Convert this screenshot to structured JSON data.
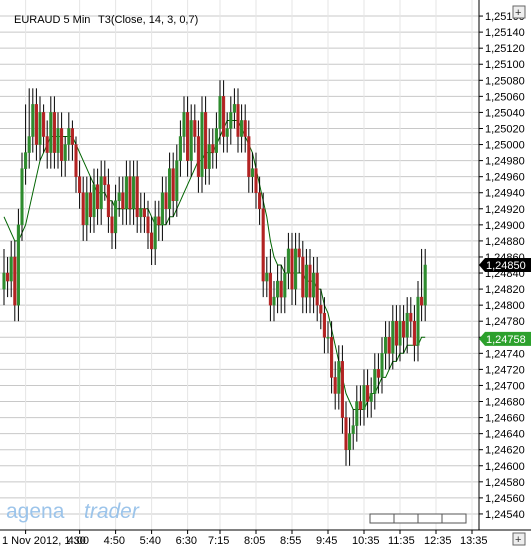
{
  "chart_data": {
    "type": "candlestick",
    "title": "EURAUD 5 Min",
    "indicator_label": "T3(Close, 14, 3, 0,7)",
    "ylim": [
      1.2452,
      1.2518
    ],
    "y_ticks": [
      1.2454,
      1.2456,
      1.2458,
      1.246,
      1.2462,
      1.2464,
      1.2466,
      1.2468,
      1.247,
      1.2472,
      1.2474,
      1.2476,
      1.2478,
      1.248,
      1.2482,
      1.2484,
      1.2486,
      1.2488,
      1.249,
      1.2492,
      1.2494,
      1.2496,
      1.2498,
      1.25,
      1.2502,
      1.2504,
      1.2506,
      1.2508,
      1.251,
      1.2512,
      1.2514,
      1.2516
    ],
    "y_tick_labels": [
      "1,24540",
      "1,24560",
      "1,24580",
      "1,24600",
      "1,24620",
      "1,24640",
      "1,24660",
      "1,24680",
      "1,24700",
      "1,24720",
      "1,24740",
      "1,24760",
      "1,24780",
      "1,24800",
      "1,24820",
      "1,24840",
      "1,24860",
      "1,24880",
      "1,24900",
      "1,24920",
      "1,24940",
      "1,24960",
      "1,24980",
      "1,25000",
      "1,25020",
      "1,25040",
      "1,25060",
      "1,25080",
      "1,25100",
      "1,25120",
      "1,25140",
      "1,25160"
    ],
    "x_tick_labels": [
      "1 Nov 2012, 1:30",
      "4:00",
      "4:50",
      "5:40",
      "6:30",
      "7:15",
      "8:05",
      "8:55",
      "9:45",
      "10:35",
      "11:35",
      "12:35",
      "13:35"
    ],
    "x_tick_index": [
      6,
      21,
      31,
      41,
      51,
      60,
      70,
      80,
      90,
      100,
      110,
      120,
      130
    ],
    "grid": true,
    "price_markers": [
      {
        "value": 1.2485,
        "label": "1,24850",
        "color": "#000000"
      },
      {
        "value": 1.24758,
        "label": "1,24758",
        "color": "#2ca02c"
      }
    ],
    "up_color": "#2e8b2e",
    "down_color": "#b22222",
    "indicator_color": "#006400",
    "candles": {
      "close": [
        1.2484,
        1.2483,
        1.2486,
        1.248,
        1.249,
        1.2497,
        1.2499,
        1.2501,
        1.2505,
        1.25,
        1.2504,
        1.2501,
        1.2499,
        1.2504,
        1.2499,
        1.2502,
        1.2498,
        1.25,
        1.2502,
        1.25,
        1.2496,
        1.2494,
        1.249,
        1.2494,
        1.2491,
        1.2495,
        1.2492,
        1.2496,
        1.2495,
        1.2491,
        1.2489,
        1.2493,
        1.2494,
        1.2492,
        1.2496,
        1.2492,
        1.2496,
        1.2491,
        1.2492,
        1.2491,
        1.2489,
        1.2487,
        1.2491,
        1.249,
        1.2494,
        1.2492,
        1.2497,
        1.2493,
        1.2498,
        1.2501,
        1.2504,
        1.2498,
        1.2503,
        1.2501,
        1.2496,
        1.2504,
        1.2497,
        1.25,
        1.2499,
        1.2502,
        1.2506,
        1.2501,
        1.2502,
        1.2504,
        1.2505,
        1.2501,
        1.2503,
        1.2501,
        1.2496,
        1.2497,
        1.2494,
        1.2492,
        1.2483,
        1.2484,
        1.248,
        1.2481,
        1.2483,
        1.2481,
        1.2484,
        1.2487,
        1.2482,
        1.2487,
        1.2486,
        1.2481,
        1.2485,
        1.2481,
        1.2484,
        1.248,
        1.2479,
        1.2476,
        1.2476,
        1.2471,
        1.2469,
        1.2473,
        1.2466,
        1.2462,
        1.2464,
        1.2465,
        1.2468,
        1.2467,
        1.247,
        1.2468,
        1.2469,
        1.2472,
        1.2471,
        1.2474,
        1.2476,
        1.2474,
        1.2478,
        1.2475,
        1.2478,
        1.2476,
        1.2479,
        1.2478,
        1.2475,
        1.2481,
        1.248,
        1.2485
      ],
      "open": [
        1.2482,
        1.2484,
        1.2483,
        1.2486,
        1.248,
        1.249,
        1.2497,
        1.2499,
        1.2501,
        1.2505,
        1.25,
        1.2504,
        1.2501,
        1.2499,
        1.2504,
        1.2499,
        1.2502,
        1.2498,
        1.25,
        1.2502,
        1.25,
        1.2496,
        1.2494,
        1.249,
        1.2494,
        1.2491,
        1.2495,
        1.2492,
        1.2496,
        1.2495,
        1.2491,
        1.2489,
        1.2493,
        1.2494,
        1.2492,
        1.2496,
        1.2492,
        1.2496,
        1.2491,
        1.2492,
        1.2491,
        1.2489,
        1.2487,
        1.2491,
        1.249,
        1.2494,
        1.2492,
        1.2497,
        1.2493,
        1.2498,
        1.2501,
        1.2504,
        1.2498,
        1.2503,
        1.2501,
        1.2496,
        1.2504,
        1.2497,
        1.25,
        1.2499,
        1.2502,
        1.2506,
        1.2501,
        1.2502,
        1.2504,
        1.2505,
        1.2501,
        1.2503,
        1.2501,
        1.2496,
        1.2497,
        1.2494,
        1.2492,
        1.2483,
        1.2484,
        1.248,
        1.2481,
        1.2483,
        1.2481,
        1.2484,
        1.2487,
        1.2482,
        1.2487,
        1.2486,
        1.2481,
        1.2485,
        1.2481,
        1.2484,
        1.248,
        1.2479,
        1.2476,
        1.2476,
        1.2471,
        1.2469,
        1.2473,
        1.2466,
        1.2462,
        1.2464,
        1.2465,
        1.2468,
        1.2467,
        1.247,
        1.2468,
        1.2469,
        1.2472,
        1.2471,
        1.2474,
        1.2476,
        1.2474,
        1.2478,
        1.2475,
        1.2478,
        1.2476,
        1.2479,
        1.2478,
        1.2475,
        1.2481,
        1.248
      ],
      "high": [
        1.2487,
        1.2486,
        1.2488,
        1.2488,
        1.2492,
        1.2499,
        1.2505,
        1.2507,
        1.2507,
        1.2507,
        1.2506,
        1.2505,
        1.2503,
        1.2506,
        1.2506,
        1.2504,
        1.2504,
        1.2501,
        1.2504,
        1.2503,
        1.2501,
        1.2498,
        1.2496,
        1.2496,
        1.2496,
        1.2497,
        1.2497,
        1.2498,
        1.2498,
        1.2497,
        1.2493,
        1.2495,
        1.2496,
        1.2496,
        1.2498,
        1.2498,
        1.2498,
        1.2498,
        1.2494,
        1.2494,
        1.2493,
        1.2491,
        1.2493,
        1.2493,
        1.2496,
        1.2496,
        1.2499,
        1.2499,
        1.25,
        1.2503,
        1.2506,
        1.2506,
        1.2505,
        1.2505,
        1.2503,
        1.2506,
        1.2506,
        1.2502,
        1.2502,
        1.2504,
        1.2508,
        1.2508,
        1.2504,
        1.2506,
        1.2507,
        1.2507,
        1.2505,
        1.2505,
        1.2503,
        1.2499,
        1.2499,
        1.2496,
        1.2494,
        1.2486,
        1.2487,
        1.2483,
        1.2485,
        1.2485,
        1.2486,
        1.2489,
        1.2489,
        1.2489,
        1.2489,
        1.2488,
        1.2487,
        1.2487,
        1.2486,
        1.2486,
        1.2482,
        1.2481,
        1.2478,
        1.2478,
        1.2473,
        1.2475,
        1.2475,
        1.2468,
        1.2466,
        1.2467,
        1.247,
        1.247,
        1.2472,
        1.2472,
        1.2471,
        1.2474,
        1.2474,
        1.2476,
        1.2478,
        1.2478,
        1.248,
        1.248,
        1.248,
        1.248,
        1.2481,
        1.2481,
        1.248,
        1.2483,
        1.2487,
        1.2487
      ],
      "low": [
        1.248,
        1.2481,
        1.2481,
        1.2478,
        1.2478,
        1.2488,
        1.2495,
        1.2497,
        1.2499,
        1.2498,
        1.2498,
        1.2499,
        1.2497,
        1.2497,
        1.2497,
        1.2497,
        1.2496,
        1.2496,
        1.2498,
        1.2498,
        1.2494,
        1.2492,
        1.2488,
        1.2488,
        1.2489,
        1.2489,
        1.249,
        1.249,
        1.2493,
        1.2489,
        1.2487,
        1.2487,
        1.2491,
        1.249,
        1.249,
        1.249,
        1.249,
        1.2489,
        1.2489,
        1.2489,
        1.2487,
        1.2485,
        1.2485,
        1.2488,
        1.2488,
        1.249,
        1.249,
        1.2491,
        1.2491,
        1.2496,
        1.2499,
        1.2496,
        1.2496,
        1.2499,
        1.2494,
        1.2494,
        1.2495,
        1.2495,
        1.2497,
        1.2497,
        1.25,
        1.2499,
        1.2499,
        1.25,
        1.2502,
        1.2499,
        1.2499,
        1.2499,
        1.2494,
        1.2494,
        1.2492,
        1.249,
        1.2481,
        1.2481,
        1.2478,
        1.2478,
        1.2479,
        1.2479,
        1.2479,
        1.2482,
        1.248,
        1.248,
        1.2484,
        1.2479,
        1.2479,
        1.2479,
        1.2479,
        1.2478,
        1.2477,
        1.2474,
        1.2474,
        1.2469,
        1.2467,
        1.2467,
        1.2464,
        1.246,
        1.246,
        1.2462,
        1.2463,
        1.2465,
        1.2465,
        1.2466,
        1.2466,
        1.2467,
        1.2469,
        1.2469,
        1.2472,
        1.2472,
        1.2472,
        1.2473,
        1.2473,
        1.2474,
        1.2474,
        1.2476,
        1.2473,
        1.2473,
        1.2478,
        1.2478
      ]
    },
    "indicator": [
      1.2491,
      1.249,
      1.2489,
      1.2488,
      1.2488,
      1.2489,
      1.249,
      1.2492,
      1.2494,
      1.2496,
      1.2498,
      1.2499,
      1.25,
      1.2501,
      1.2501,
      1.2501,
      1.2501,
      1.2501,
      1.2501,
      1.2501,
      1.25,
      1.2499,
      1.2498,
      1.2497,
      1.2496,
      1.2495,
      1.2494,
      1.2494,
      1.2494,
      1.2493,
      1.2493,
      1.2492,
      1.2492,
      1.2492,
      1.2492,
      1.2492,
      1.2492,
      1.2492,
      1.2492,
      1.2492,
      1.2492,
      1.2491,
      1.249,
      1.249,
      1.249,
      1.249,
      1.2491,
      1.2491,
      1.2492,
      1.2493,
      1.2494,
      1.2495,
      1.2496,
      1.2497,
      1.2498,
      1.2498,
      1.2499,
      1.2499,
      1.2499,
      1.25,
      1.2501,
      1.2502,
      1.2503,
      1.2503,
      1.2503,
      1.2503,
      1.2502,
      1.2501,
      1.25,
      1.2499,
      1.2497,
      1.2495,
      1.2493,
      1.2491,
      1.2488,
      1.2486,
      1.2485,
      1.2485,
      1.2484,
      1.2484,
      1.2484,
      1.2484,
      1.2484,
      1.2484,
      1.2483,
      1.2483,
      1.2483,
      1.2482,
      1.2482,
      1.248,
      1.2479,
      1.2477,
      1.2475,
      1.2473,
      1.2471,
      1.2469,
      1.2468,
      1.2467,
      1.2467,
      1.2467,
      1.2467,
      1.2468,
      1.2469,
      1.2469,
      1.247,
      1.2471,
      1.2471,
      1.2472,
      1.2473,
      1.2473,
      1.2474,
      1.2474,
      1.2475,
      1.2475,
      1.2475,
      1.2475,
      1.2476,
      1.2476
    ]
  },
  "watermark": {
    "part1": "agena",
    "part2": "trader"
  }
}
